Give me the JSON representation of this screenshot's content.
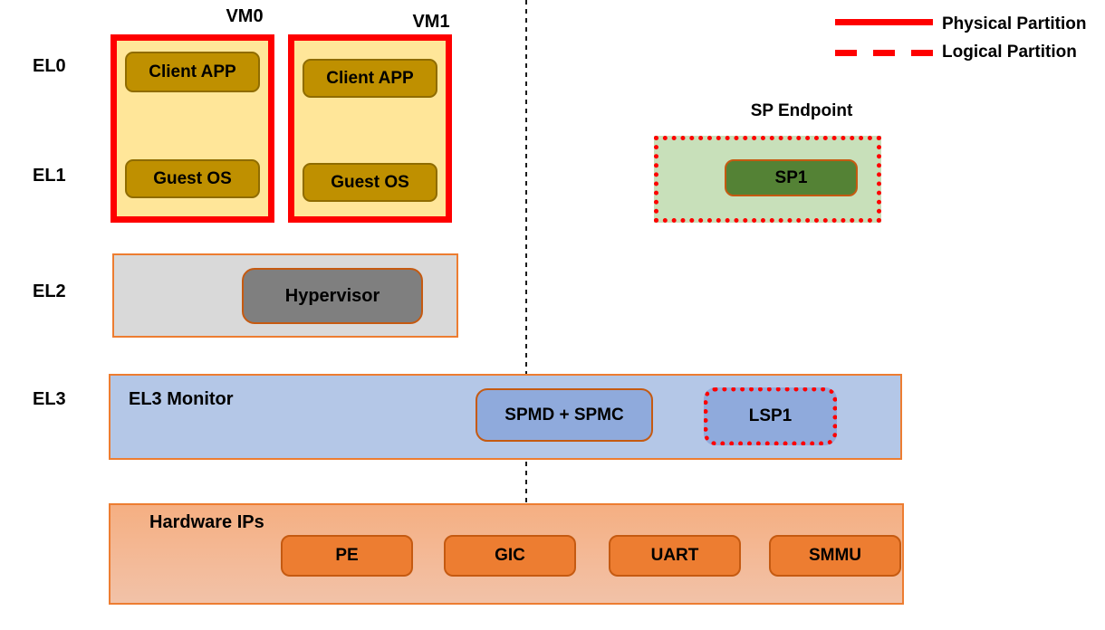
{
  "diagram": {
    "description_type": "arm-exception-level-partition-diagram"
  },
  "el_levels": [
    "EL0",
    "EL1",
    "EL2",
    "EL3"
  ],
  "legend": {
    "physical_label": "Physical Partition",
    "logical_label": "Logical Partition"
  },
  "vms": [
    {
      "name": "VM0",
      "client_app": "Client APP",
      "guest_os": "Guest OS"
    },
    {
      "name": "VM1",
      "client_app": "Client APP",
      "guest_os": "Guest OS"
    }
  ],
  "sp_endpoint": {
    "title": "SP Endpoint",
    "sp1_label": "SP1"
  },
  "el2": {
    "hypervisor_label": "Hypervisor"
  },
  "el3": {
    "monitor_label": "EL3 Monitor",
    "spmd_spmc_label": "SPMD + SPMC",
    "lsp1_label": "LSP1"
  },
  "hardware": {
    "title": "Hardware IPs",
    "chips": [
      "PE",
      "GIC",
      "UART",
      "SMMU"
    ]
  },
  "colors": {
    "physical_partition_border": "#FE0000",
    "logical_partition_border": "#FE0000",
    "vm_fill": "#FFE699",
    "vm_inner_fill": "#BF9000",
    "sp_endpoint_fill": "#C8E0BA",
    "sp1_fill": "#548235",
    "el2_fill": "#D9D9D9",
    "hypervisor_fill": "#7F7F7F",
    "el3_fill": "#B4C7E7",
    "el3_inner_fill": "#8FAADC",
    "hardware_fill_top": "#F5AF82",
    "hardware_fill_bottom": "#F2C2A8",
    "chip_fill": "#ED7D31",
    "outer_border_orange": "#ED7D31",
    "inner_border_orange": "#C55A11",
    "text": "#000000"
  }
}
